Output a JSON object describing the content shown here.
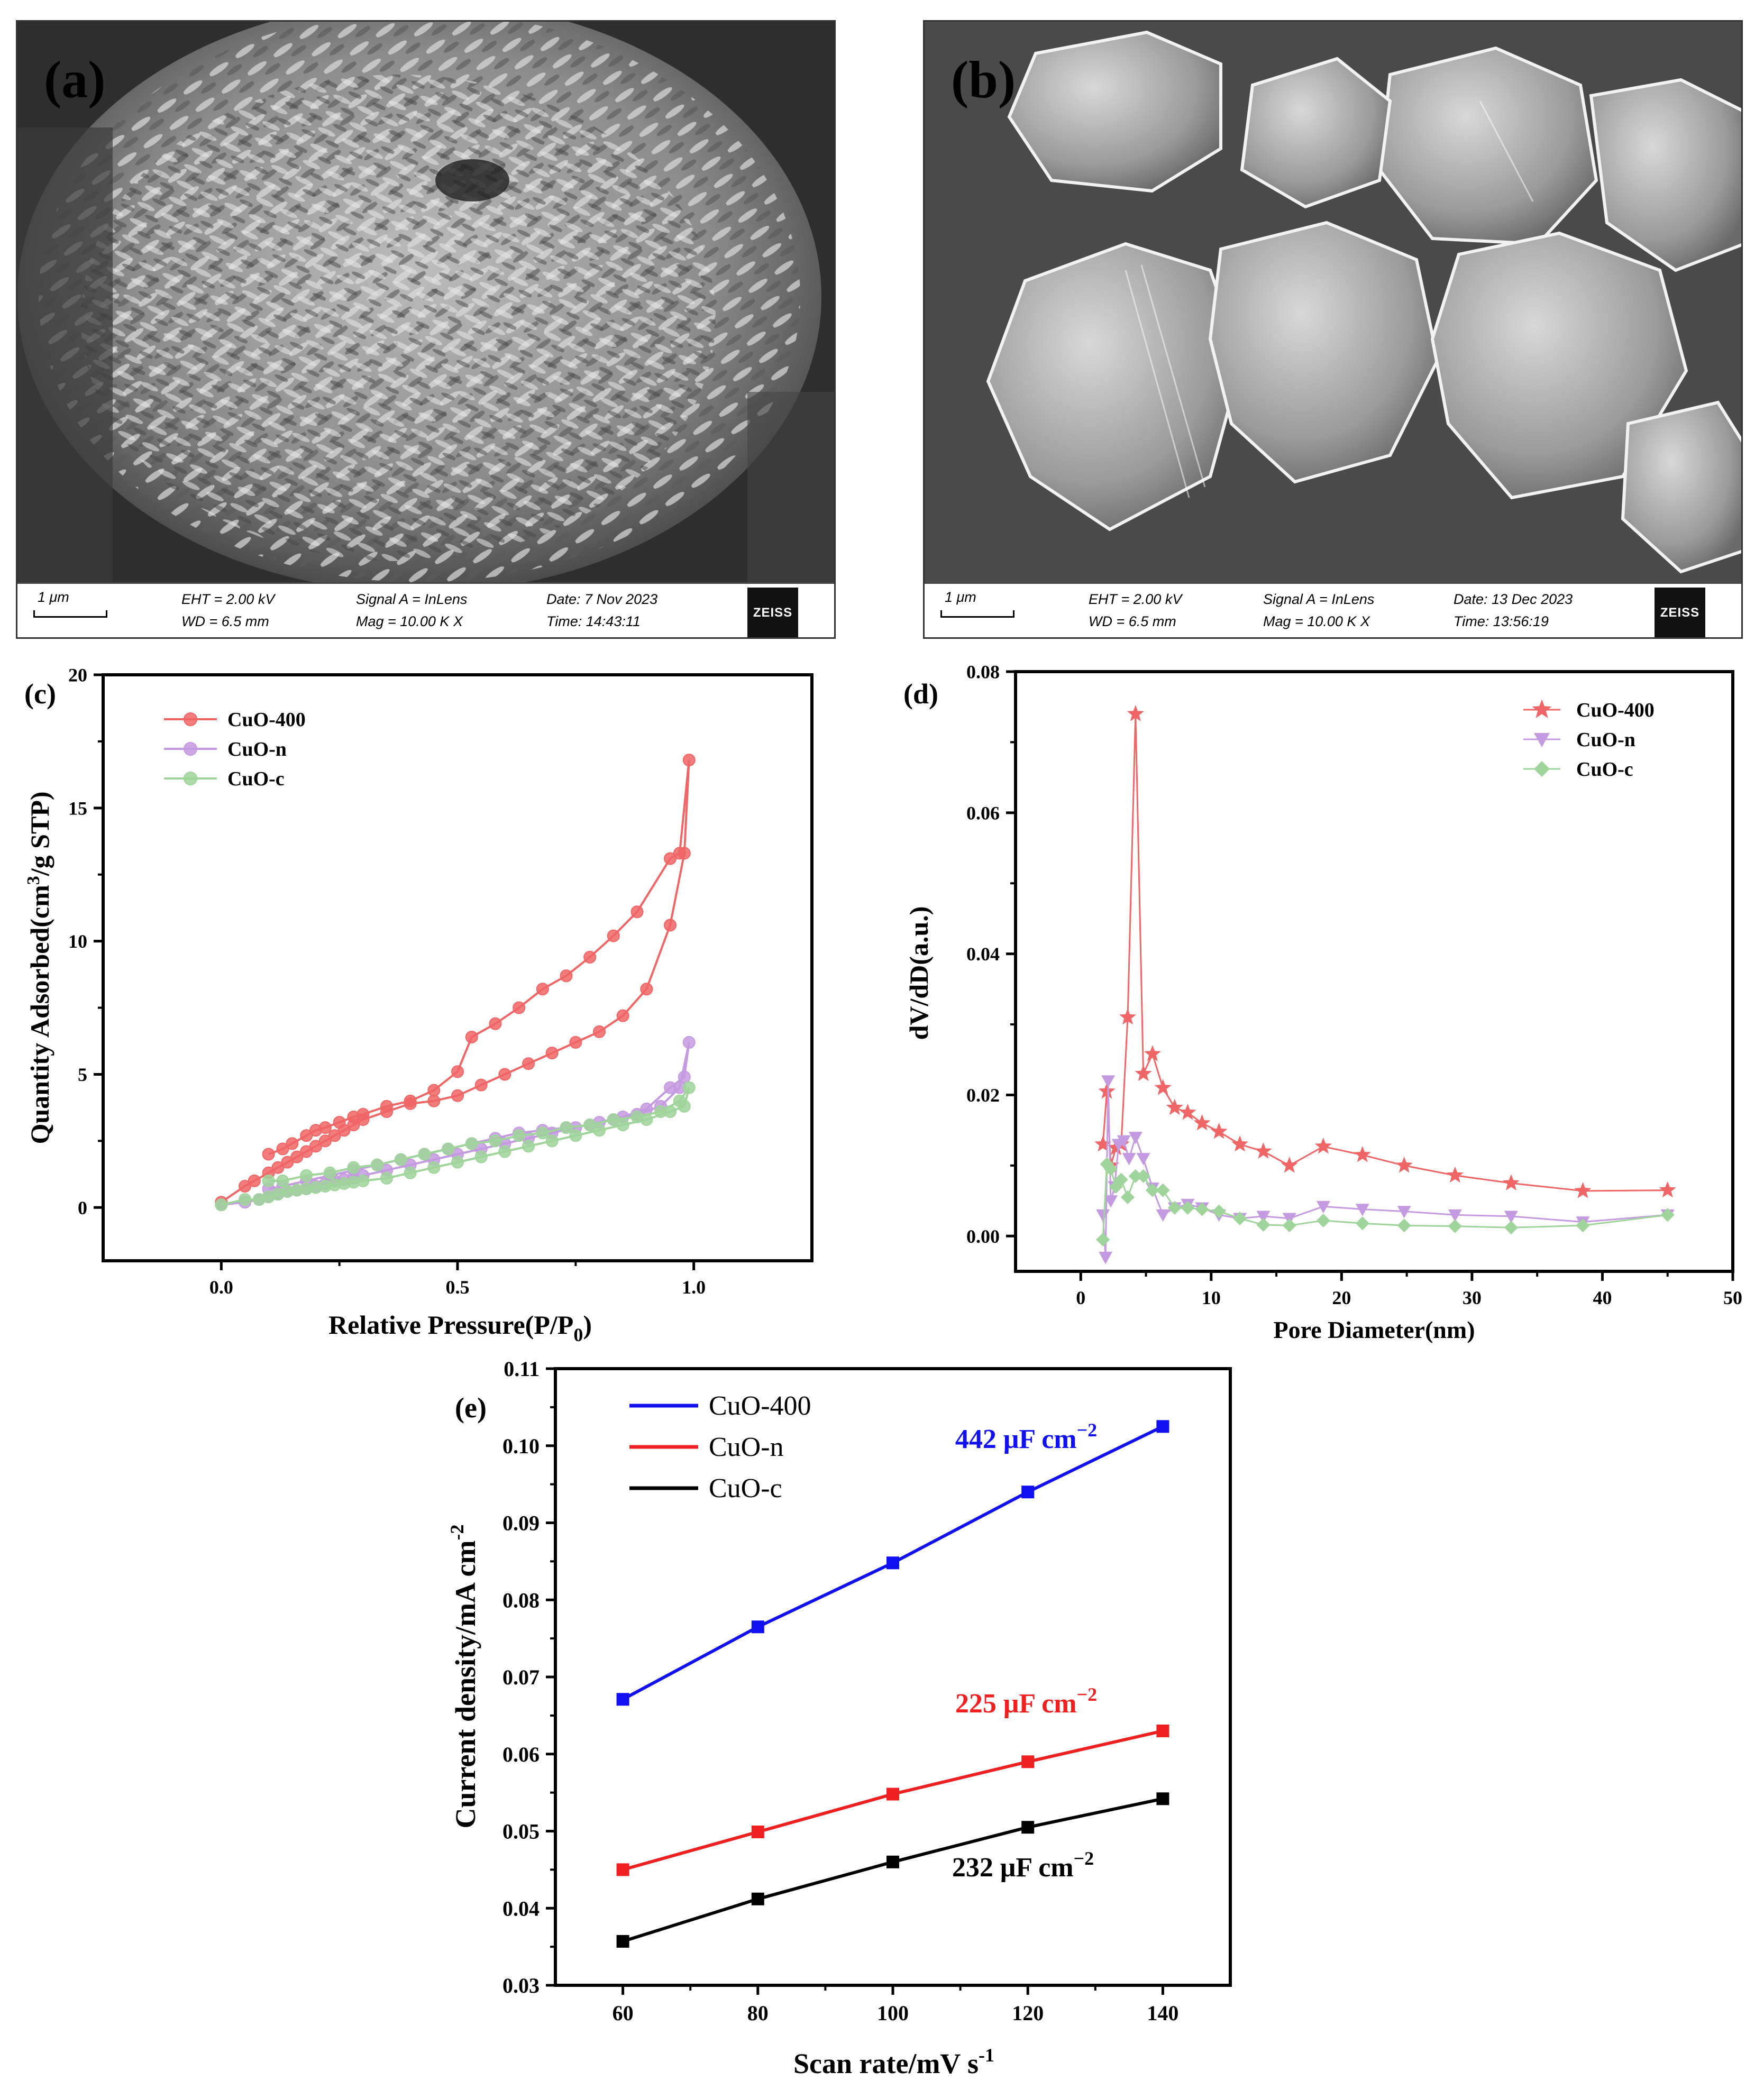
{
  "panels": {
    "a": {
      "label": "(a)",
      "databar": {
        "scale": "1 μm",
        "eht": "EHT = 2.00 kV",
        "wd": "WD = 6.5 mm",
        "signal": "Signal A = InLens",
        "mag": "Mag = 10.00 K X",
        "date": "Date: 7 Nov 2023",
        "time": "Time: 14:43:11",
        "logo": "ZEISS"
      }
    },
    "b": {
      "label": "(b)",
      "databar": {
        "scale": "1 μm",
        "eht": "EHT = 2.00 kV",
        "wd": "WD = 6.5 mm",
        "signal": "Signal A = InLens",
        "mag": "Mag = 10.00 K X",
        "date": "Date: 13 Dec 2023",
        "time": "Time: 13:56:19",
        "logo": "ZEISS"
      }
    }
  },
  "chart_data": [
    {
      "id": "c",
      "type": "line",
      "panel_label": "(c)",
      "xlabel_main": "Relative Pressure(P/P",
      "xlabel_sub": "0",
      "xlabel_end": ")",
      "ylabel_main": "Quantity Adsorbed(cm",
      "ylabel_sup": "3",
      "ylabel_end": "/g STP)",
      "xlim": [
        -0.25,
        1.25
      ],
      "ylim": [
        -2,
        20
      ],
      "xticks": [
        0.0,
        0.5,
        1.0
      ],
      "xtick_labels": [
        "0.0",
        "0.5",
        "1.0"
      ],
      "yticks": [
        0,
        5,
        10,
        15,
        20
      ],
      "ytick_labels": [
        "0",
        "5",
        "10",
        "15",
        "20"
      ],
      "legend": "top-left",
      "series": [
        {
          "name": "CuO-400",
          "color": "#f06565",
          "marker": "circle",
          "x": [
            0.0,
            0.05,
            0.07,
            0.1,
            0.12,
            0.14,
            0.16,
            0.18,
            0.2,
            0.22,
            0.24,
            0.26,
            0.28,
            0.3,
            0.35,
            0.4,
            0.45,
            0.5,
            0.55,
            0.6,
            0.65,
            0.7,
            0.75,
            0.8,
            0.85,
            0.9,
            0.95,
            0.98,
            0.99,
            0.97,
            0.95,
            0.88,
            0.83,
            0.78,
            0.73,
            0.68,
            0.63,
            0.58,
            0.53,
            0.5,
            0.45,
            0.4,
            0.35,
            0.3,
            0.28,
            0.25,
            0.22,
            0.2,
            0.18,
            0.15,
            0.13,
            0.1
          ],
          "y": [
            0.2,
            0.8,
            1.0,
            1.3,
            1.5,
            1.7,
            1.9,
            2.1,
            2.3,
            2.5,
            2.7,
            2.9,
            3.1,
            3.3,
            3.6,
            3.9,
            4.0,
            4.2,
            4.6,
            5.0,
            5.4,
            5.8,
            6.2,
            6.6,
            7.2,
            8.2,
            10.6,
            13.3,
            16.8,
            13.3,
            13.1,
            11.1,
            10.2,
            9.4,
            8.7,
            8.2,
            7.5,
            6.9,
            6.4,
            5.1,
            4.4,
            4.0,
            3.8,
            3.5,
            3.4,
            3.2,
            3.0,
            2.9,
            2.7,
            2.4,
            2.2,
            2.0
          ]
        },
        {
          "name": "CuO-n",
          "color": "#c49ae0",
          "marker": "circle",
          "x": [
            0.0,
            0.05,
            0.08,
            0.1,
            0.12,
            0.14,
            0.16,
            0.18,
            0.2,
            0.22,
            0.24,
            0.26,
            0.28,
            0.3,
            0.35,
            0.4,
            0.45,
            0.5,
            0.55,
            0.6,
            0.65,
            0.7,
            0.75,
            0.8,
            0.85,
            0.9,
            0.95,
            0.98,
            0.99,
            0.97,
            0.93,
            0.88,
            0.83,
            0.78,
            0.73,
            0.68,
            0.63,
            0.58,
            0.53,
            0.48,
            0.43,
            0.38,
            0.33,
            0.28,
            0.23,
            0.18,
            0.13,
            0.1
          ],
          "y": [
            0.1,
            0.2,
            0.3,
            0.4,
            0.5,
            0.6,
            0.65,
            0.7,
            0.8,
            0.9,
            1.0,
            1.05,
            1.1,
            1.2,
            1.4,
            1.6,
            1.8,
            2.0,
            2.2,
            2.4,
            2.6,
            2.8,
            3.0,
            3.2,
            3.4,
            3.7,
            4.5,
            4.9,
            6.2,
            4.5,
            3.8,
            3.5,
            3.3,
            3.1,
            3.0,
            2.9,
            2.8,
            2.6,
            2.4,
            2.2,
            2.0,
            1.8,
            1.6,
            1.4,
            1.2,
            1.0,
            0.8,
            0.7
          ]
        },
        {
          "name": "CuO-c",
          "color": "#9fd49a",
          "marker": "circle",
          "x": [
            0.0,
            0.05,
            0.08,
            0.1,
            0.12,
            0.14,
            0.16,
            0.18,
            0.2,
            0.22,
            0.24,
            0.26,
            0.28,
            0.3,
            0.35,
            0.4,
            0.45,
            0.5,
            0.55,
            0.6,
            0.65,
            0.7,
            0.75,
            0.8,
            0.85,
            0.9,
            0.95,
            0.98,
            0.99,
            0.97,
            0.93,
            0.88,
            0.83,
            0.78,
            0.73,
            0.68,
            0.63,
            0.58,
            0.53,
            0.48,
            0.43,
            0.38,
            0.33,
            0.28,
            0.23,
            0.18,
            0.13,
            0.1
          ],
          "y": [
            0.1,
            0.3,
            0.3,
            0.4,
            0.5,
            0.6,
            0.65,
            0.7,
            0.75,
            0.8,
            0.85,
            0.9,
            0.95,
            1.0,
            1.1,
            1.3,
            1.5,
            1.7,
            1.9,
            2.1,
            2.3,
            2.5,
            2.7,
            2.9,
            3.1,
            3.3,
            3.6,
            3.8,
            4.5,
            4.0,
            3.6,
            3.4,
            3.3,
            3.1,
            3.0,
            2.8,
            2.7,
            2.5,
            2.4,
            2.2,
            2.0,
            1.8,
            1.6,
            1.5,
            1.3,
            1.2,
            1.0,
            1.0
          ]
        }
      ]
    },
    {
      "id": "d",
      "type": "line",
      "panel_label": "(d)",
      "xlabel": "Pore Diameter(nm)",
      "ylabel": "dV/dD(a.u.)",
      "xlim": [
        -5,
        50
      ],
      "ylim": [
        -0.005,
        0.08
      ],
      "xticks": [
        0,
        10,
        20,
        30,
        40,
        50
      ],
      "xtick_labels": [
        "0",
        "10",
        "20",
        "30",
        "40",
        "50"
      ],
      "yticks": [
        0.0,
        0.02,
        0.04,
        0.06,
        0.08
      ],
      "ytick_labels": [
        "0.00",
        "0.02",
        "0.04",
        "0.06",
        "0.08"
      ],
      "legend": "top-right",
      "series": [
        {
          "name": "CuO-400",
          "color": "#f06565",
          "marker": "star",
          "x": [
            1.7,
            2.0,
            2.3,
            2.7,
            3.1,
            3.6,
            4.2,
            4.8,
            5.5,
            6.3,
            7.2,
            8.2,
            9.3,
            10.6,
            12.2,
            14.0,
            16.0,
            18.6,
            21.6,
            24.8,
            28.7,
            33.0,
            38.5,
            45.0
          ],
          "y": [
            0.013,
            0.0205,
            0.01,
            0.0125,
            0.013,
            0.031,
            0.074,
            0.023,
            0.0258,
            0.021,
            0.0182,
            0.0175,
            0.016,
            0.0148,
            0.013,
            0.012,
            0.01,
            0.0127,
            0.0115,
            0.01,
            0.0086,
            0.0075,
            0.0064,
            0.0065
          ]
        },
        {
          "name": "CuO-n",
          "color": "#c49ae0",
          "marker": "triangle-down",
          "x": [
            1.7,
            1.9,
            2.1,
            2.3,
            2.6,
            2.9,
            3.3,
            3.7,
            4.2,
            4.8,
            5.5,
            6.3,
            7.2,
            8.2,
            9.3,
            10.6,
            12.2,
            14.0,
            16.0,
            18.6,
            21.6,
            24.8,
            28.7,
            33.0,
            38.5,
            45.0
          ],
          "y": [
            0.003,
            -0.003,
            0.022,
            0.005,
            0.007,
            0.013,
            0.0135,
            0.011,
            0.014,
            0.011,
            0.0068,
            0.003,
            0.004,
            0.0045,
            0.004,
            0.003,
            0.0025,
            0.0028,
            0.0025,
            0.0042,
            0.0038,
            0.0035,
            0.003,
            0.0028,
            0.002,
            0.003
          ]
        },
        {
          "name": "CuO-c",
          "color": "#9fd49a",
          "marker": "diamond",
          "x": [
            1.7,
            2.0,
            2.3,
            2.7,
            3.1,
            3.6,
            4.2,
            4.8,
            5.5,
            6.3,
            7.2,
            8.2,
            9.3,
            10.6,
            12.2,
            14.0,
            16.0,
            18.6,
            21.6,
            24.8,
            28.7,
            33.0,
            38.5,
            45.0
          ],
          "y": [
            -0.0005,
            0.0102,
            0.0095,
            0.007,
            0.008,
            0.0055,
            0.0085,
            0.0085,
            0.0065,
            0.0065,
            0.004,
            0.004,
            0.0038,
            0.0035,
            0.0025,
            0.0016,
            0.0015,
            0.0022,
            0.0018,
            0.0015,
            0.0014,
            0.0012,
            0.0015,
            0.003
          ]
        }
      ]
    },
    {
      "id": "e",
      "type": "line",
      "panel_label": "(e)",
      "xlabel_main": "Scan rate/mV s",
      "xlabel_sup": "-1",
      "ylabel_main": "Current density/mA cm",
      "ylabel_sup": "-2",
      "xlim": [
        50,
        150
      ],
      "ylim": [
        0.03,
        0.11
      ],
      "xticks": [
        60,
        80,
        100,
        120,
        140
      ],
      "xtick_labels": [
        "60",
        "80",
        "100",
        "120",
        "140"
      ],
      "yticks": [
        0.03,
        0.04,
        0.05,
        0.06,
        0.07,
        0.08,
        0.09,
        0.1,
        0.11
      ],
      "ytick_labels": [
        "0.03",
        "0.04",
        "0.05",
        "0.06",
        "0.07",
        "0.08",
        "0.09",
        "0.10",
        "0.11"
      ],
      "legend": "top-left",
      "series": [
        {
          "name": "CuO-400",
          "color": "#1010f0",
          "x": [
            60,
            80,
            100,
            120,
            140
          ],
          "y": [
            0.0671,
            0.0765,
            0.0848,
            0.094,
            0.1025
          ],
          "annotation_main": "442 μF cm",
          "annotation_sup": "−2"
        },
        {
          "name": "CuO-n",
          "color": "#f02020",
          "x": [
            60,
            80,
            100,
            120,
            140
          ],
          "y": [
            0.045,
            0.0499,
            0.0548,
            0.059,
            0.063
          ],
          "annotation_main": "225 μF cm",
          "annotation_sup": "−2"
        },
        {
          "name": "CuO-c",
          "color": "#000000",
          "x": [
            60,
            80,
            100,
            120,
            140
          ],
          "y": [
            0.0357,
            0.0412,
            0.046,
            0.0505,
            0.0542
          ],
          "annotation_main": "232 μF cm",
          "annotation_sup": "−2"
        }
      ]
    }
  ]
}
